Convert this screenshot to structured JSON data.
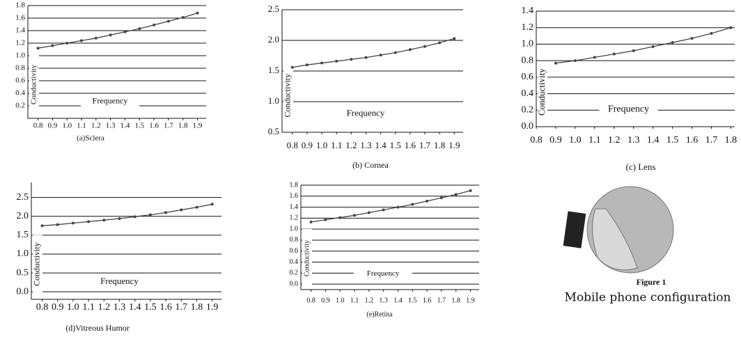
{
  "chart_data": [
    {
      "type": "line",
      "title": "(a)Sclera",
      "x_label": "Frequency",
      "y_label": "Conductivity",
      "color": "#444444",
      "grid": true,
      "x": [
        0.8,
        0.9,
        1,
        1.1,
        1.2,
        1.3,
        1.4,
        1.5,
        1.6,
        1.7,
        1.8,
        1.9
      ],
      "values": [
        1.12,
        1.16,
        1.2,
        1.24,
        1.28,
        1.33,
        1.38,
        1.43,
        1.49,
        1.55,
        1.61,
        1.68
      ],
      "xlim": [
        0.73,
        1.96
      ],
      "ylim": [
        0,
        1.8
      ],
      "xticks": [
        0.8,
        0.9,
        {
          "value": 1,
          "label": "1.0"
        },
        1.1,
        1.2,
        1.3,
        1.4,
        1.5,
        1.6,
        1.7,
        1.8,
        1.9
      ],
      "yticks": [
        0.2,
        0.4,
        0.6,
        0.8,
        {
          "value": 1,
          "label": "1.0"
        },
        1.2,
        1.4,
        1.6,
        1.8
      ]
    },
    {
      "type": "line",
      "title": "(b) Cornea",
      "x_label": "Frequency",
      "y_label": "Conductivity",
      "color": "#444444",
      "grid": true,
      "x": [
        0.8,
        0.9,
        1,
        1.1,
        1.2,
        1.3,
        1.4,
        1.5,
        1.6,
        1.7,
        1.8,
        1.9
      ],
      "values": [
        1.56,
        1.6,
        1.63,
        1.66,
        1.69,
        1.72,
        1.76,
        1.8,
        1.85,
        1.9,
        1.96,
        2.03
      ],
      "xlim": [
        0.73,
        1.96
      ],
      "ylim": [
        0.5,
        2.5
      ],
      "xticks": [
        0.8,
        0.9,
        {
          "value": 1,
          "label": "1.0"
        },
        1.1,
        1.2,
        1.3,
        1.4,
        1.5,
        1.6,
        1.7,
        1.8,
        1.9
      ],
      "yticks": [
        0.5,
        {
          "value": 1,
          "label": "1.0"
        },
        1.5,
        {
          "value": 2,
          "label": "2.0"
        },
        2.5
      ]
    },
    {
      "type": "line",
      "title": "(c) Lens",
      "x_label": "Frequency",
      "y_label": "Conductivity",
      "color": "#444444",
      "grid": true,
      "x": [
        0.9,
        1,
        1.1,
        1.2,
        1.3,
        1.4,
        1.5,
        1.6,
        1.7,
        1.8
      ],
      "values": [
        0.77,
        0.8,
        0.84,
        0.88,
        0.92,
        0.97,
        1.02,
        1.07,
        1.13,
        1.2
      ],
      "xlim": [
        0.8,
        1.82
      ],
      "ylim": [
        0,
        1.4
      ],
      "xticks": [
        0.8,
        0.9,
        {
          "value": 1,
          "label": "1.0"
        },
        1.1,
        1.2,
        1.3,
        1.4,
        1.5,
        1.6,
        1.7,
        1.8
      ],
      "yticks": [
        {
          "value": 0,
          "label": "0.0"
        },
        0.2,
        0.4,
        0.6,
        0.8,
        {
          "value": 1,
          "label": "1.0"
        },
        1.2,
        1.4
      ]
    },
    {
      "type": "line",
      "title": "(d)Vitreous Humor",
      "x_label": "Frequency",
      "y_label": "Conductivity",
      "color": "#444444",
      "grid": true,
      "x": [
        0.8,
        0.9,
        1,
        1.1,
        1.2,
        1.3,
        1.4,
        1.5,
        1.6,
        1.7,
        1.8,
        1.9
      ],
      "values": [
        1.75,
        1.78,
        1.82,
        1.86,
        1.9,
        1.94,
        1.99,
        2.04,
        2.1,
        2.17,
        2.24,
        2.32
      ],
      "xlim": [
        0.73,
        1.96
      ],
      "ylim": [
        -0.2,
        2.9
      ],
      "xticks": [
        0.8,
        0.9,
        {
          "value": 1,
          "label": "1.0"
        },
        1.1,
        1.2,
        1.3,
        1.4,
        1.5,
        1.6,
        1.7,
        1.8,
        1.9
      ],
      "yticks": [
        {
          "value": 0,
          "label": "0.0"
        },
        0.5,
        {
          "value": 1,
          "label": "1.0"
        },
        1.5,
        {
          "value": 2,
          "label": "2.0"
        },
        2.5
      ]
    },
    {
      "type": "line",
      "title": "(e)Retina",
      "x_label": "Frequency",
      "y_label": "Conductivity",
      "color": "#444444",
      "grid": true,
      "x": [
        0.8,
        0.9,
        1,
        1.1,
        1.2,
        1.3,
        1.4,
        1.5,
        1.6,
        1.7,
        1.8,
        1.9
      ],
      "values": [
        1.13,
        1.17,
        1.21,
        1.25,
        1.3,
        1.35,
        1.4,
        1.45,
        1.51,
        1.57,
        1.63,
        1.7
      ],
      "xlim": [
        0.73,
        1.96
      ],
      "ylim": [
        -0.1,
        1.8
      ],
      "xticks": [
        0.8,
        0.9,
        {
          "value": 1,
          "label": "1.0"
        },
        1.1,
        1.2,
        1.3,
        1.4,
        1.5,
        1.6,
        1.7,
        1.8,
        1.9
      ],
      "yticks": [
        {
          "value": 0,
          "label": "0.0"
        },
        0.2,
        0.4,
        0.6,
        0.8,
        {
          "value": 1,
          "label": "1.0"
        },
        1.2,
        1.4,
        1.6,
        1.8
      ]
    }
  ],
  "figure": {
    "label": "Figure 1",
    "caption": "Mobile phone configuration"
  }
}
